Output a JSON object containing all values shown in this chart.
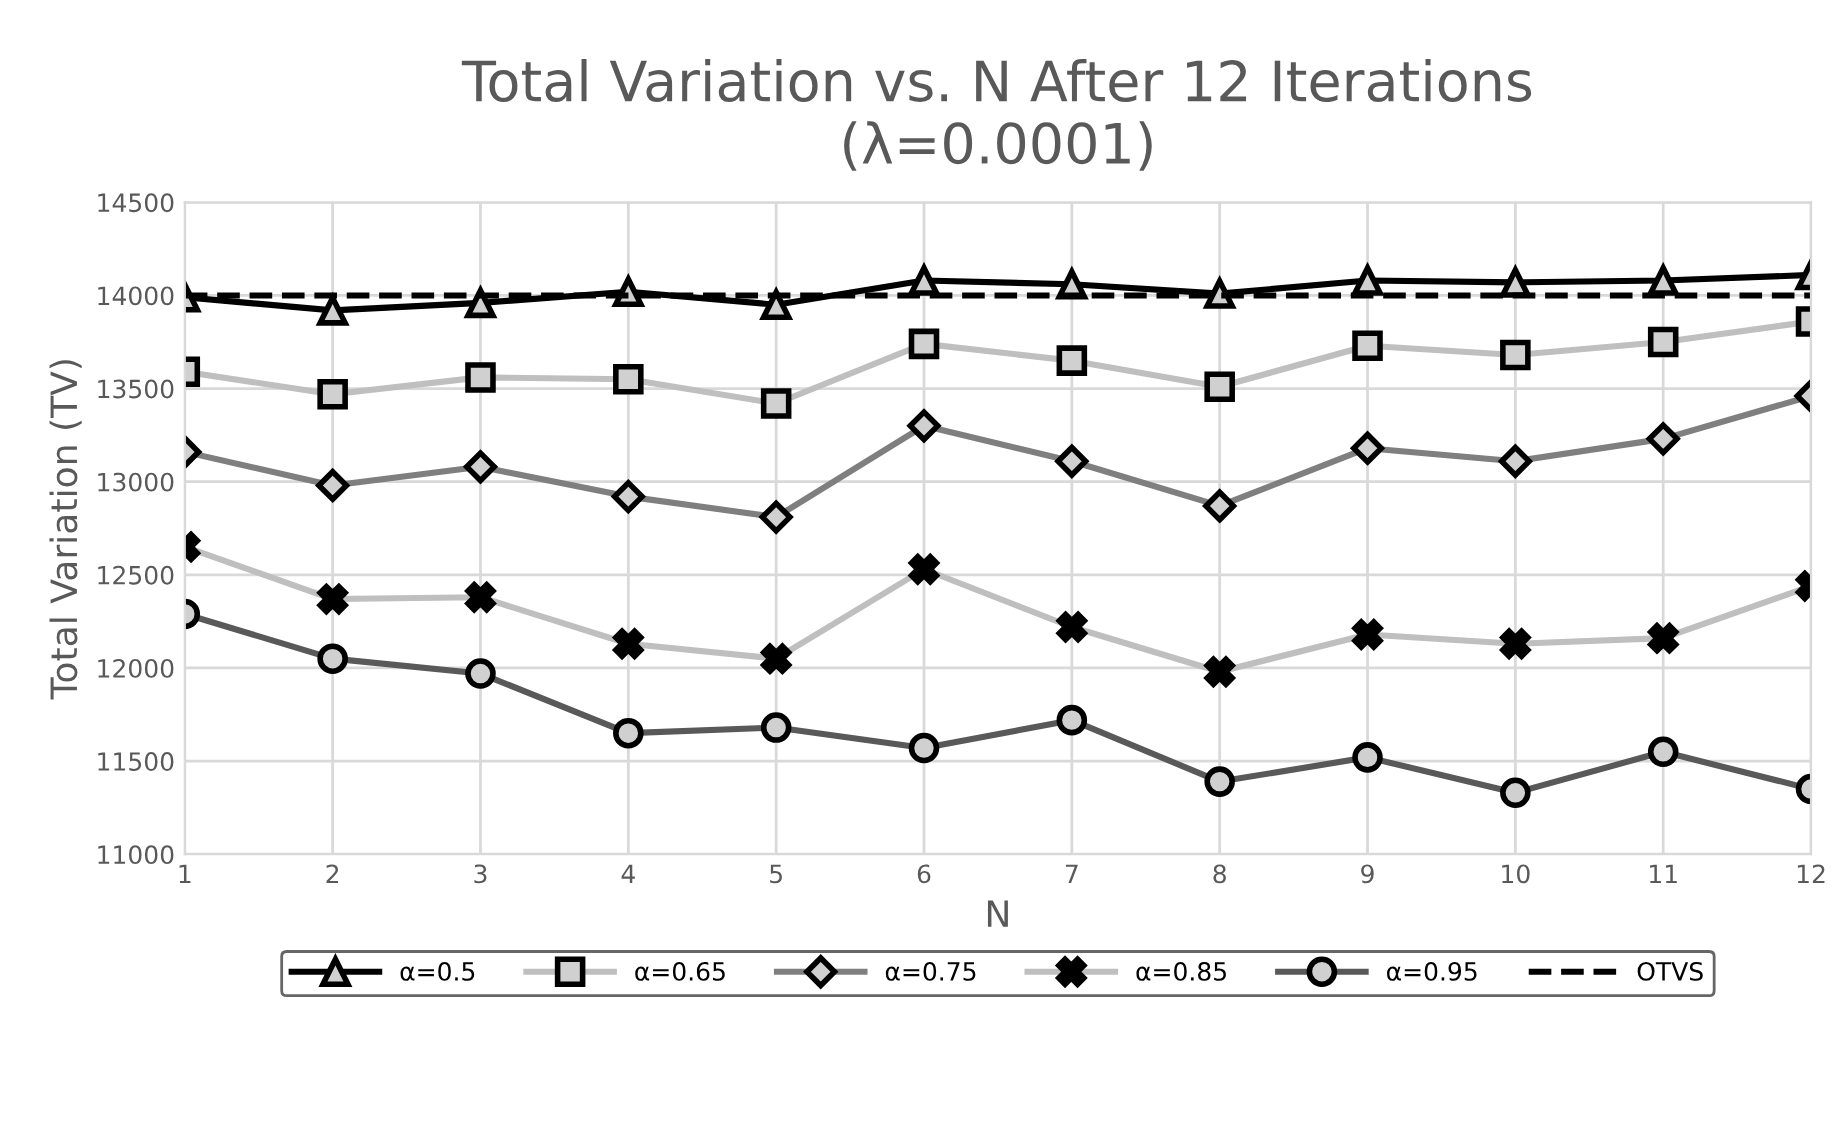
{
  "chart_data": {
    "type": "line",
    "title": "Total Variation vs. N After 12 Iterations\n(λ=0.0001)",
    "xlabel": "N",
    "ylabel": "Total Variation (TV)",
    "x": [
      1,
      2,
      3,
      4,
      5,
      6,
      7,
      8,
      9,
      10,
      11,
      12
    ],
    "xlim": [
      1,
      12
    ],
    "xticks": [
      1,
      2,
      3,
      4,
      5,
      6,
      7,
      8,
      9,
      10,
      11,
      12
    ],
    "ylim": [
      11000,
      14500
    ],
    "yticks": [
      11000,
      11500,
      12000,
      12500,
      13000,
      13500,
      14000,
      14500
    ],
    "grid": true,
    "legend": "bottom",
    "series": [
      {
        "name": "α=0.5",
        "color": "#000000",
        "marker": "triangle",
        "line_style": "solid",
        "values": [
          13990,
          13920,
          13960,
          14020,
          13950,
          14080,
          14060,
          14010,
          14080,
          14070,
          14080,
          14110
        ]
      },
      {
        "name": "α=0.65",
        "color": "#bfbfbf",
        "marker": "square",
        "line_style": "solid",
        "values": [
          13590,
          13470,
          13560,
          13550,
          13420,
          13740,
          13650,
          13510,
          13730,
          13680,
          13750,
          13860
        ]
      },
      {
        "name": "α=0.75",
        "color": "#7f7f7f",
        "marker": "diamond",
        "line_style": "solid",
        "values": [
          13160,
          12980,
          13080,
          12920,
          12810,
          13300,
          13110,
          12870,
          13180,
          13110,
          13230,
          13460
        ]
      },
      {
        "name": "α=0.85",
        "color": "#bfbfbf",
        "marker": "cross",
        "line_style": "solid",
        "values": [
          12650,
          12370,
          12380,
          12130,
          12050,
          12530,
          12220,
          11980,
          12180,
          12130,
          12160,
          12440
        ]
      },
      {
        "name": "α=0.95",
        "color": "#595959",
        "marker": "circle",
        "line_style": "solid",
        "values": [
          12290,
          12050,
          11970,
          11650,
          11680,
          11570,
          11720,
          11390,
          11520,
          11330,
          11550,
          11350
        ]
      },
      {
        "name": "OTVS",
        "color": "#000000",
        "marker": "none",
        "line_style": "dashed",
        "values": [
          14000,
          14000,
          14000,
          14000,
          14000,
          14000,
          14000,
          14000,
          14000,
          14000,
          14000,
          14000
        ]
      }
    ]
  }
}
